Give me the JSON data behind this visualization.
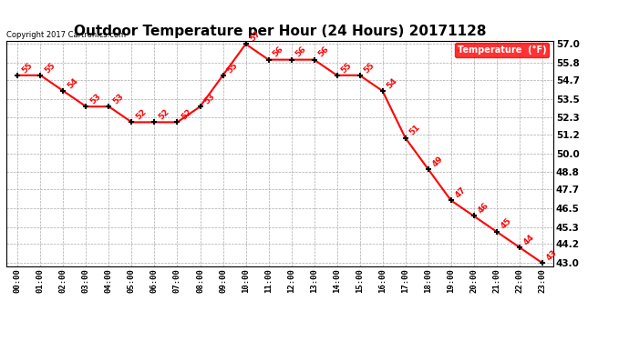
{
  "title": "Outdoor Temperature per Hour (24 Hours) 20171128",
  "copyright": "Copyright 2017 Cartronics.com",
  "legend_label": "Temperature  (°F)",
  "hours": [
    "00:00",
    "01:00",
    "02:00",
    "03:00",
    "04:00",
    "05:00",
    "06:00",
    "07:00",
    "08:00",
    "09:00",
    "10:00",
    "11:00",
    "12:00",
    "13:00",
    "14:00",
    "15:00",
    "16:00",
    "17:00",
    "18:00",
    "19:00",
    "20:00",
    "21:00",
    "22:00",
    "23:00"
  ],
  "temperatures": [
    55,
    55,
    54,
    53,
    53,
    52,
    52,
    52,
    53,
    55,
    57,
    56,
    56,
    56,
    55,
    55,
    54,
    51,
    49,
    47,
    46,
    45,
    44,
    43
  ],
  "line_color": "red",
  "marker_color": "black",
  "grid_color": "#aaaaaa",
  "background_color": "white",
  "yticks": [
    43.0,
    44.2,
    45.3,
    46.5,
    47.7,
    48.8,
    50.0,
    51.2,
    52.3,
    53.5,
    54.7,
    55.8,
    57.0
  ],
  "ymin": 42.8,
  "ymax": 57.2,
  "title_fontsize": 11,
  "legend_bg": "red",
  "legend_fg": "white"
}
